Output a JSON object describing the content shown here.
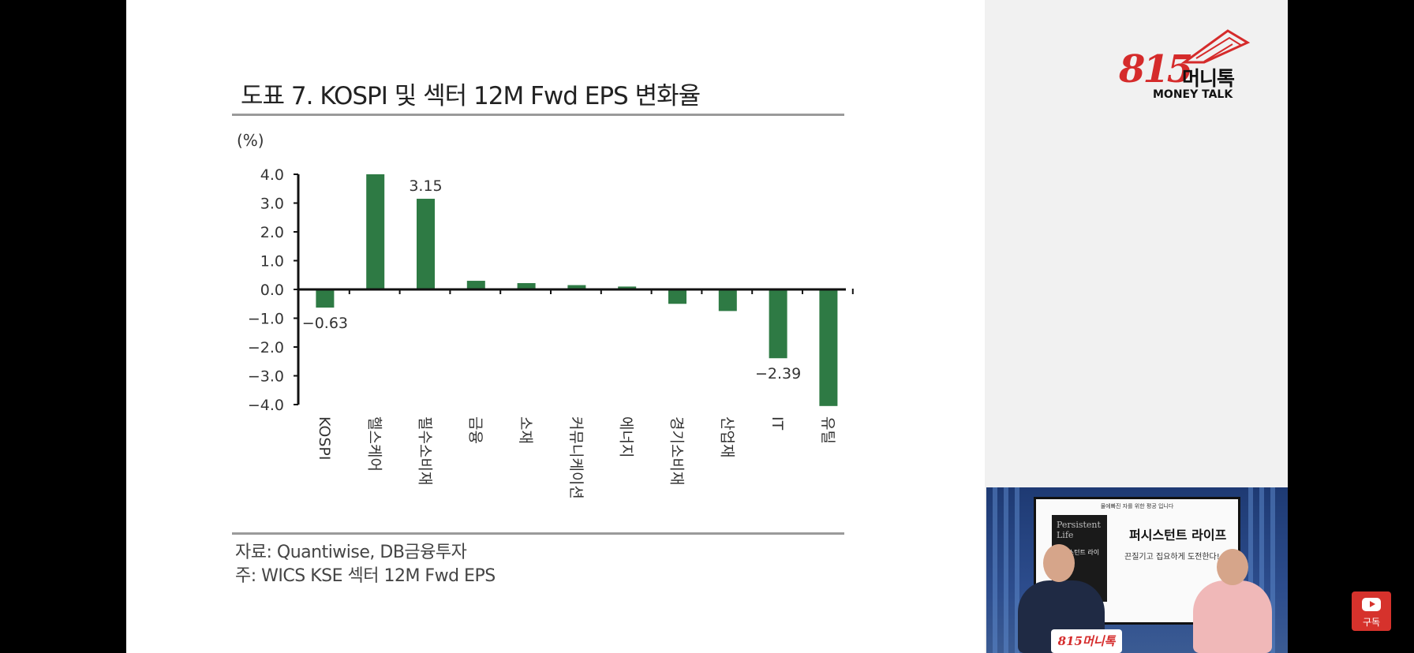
{
  "slide": {
    "title": "도표 7. KOSPI 및 섹터 12M Fwd EPS 변화율",
    "source_note": "자료: Quantiwise, DB금융투자",
    "footnote": "주: WICS KSE 섹터 12M Fwd EPS"
  },
  "chart_data": {
    "type": "bar",
    "title": "도표 7. KOSPI 및 섹터 12M Fwd EPS 변화율",
    "unit_label": "(%)",
    "categories": [
      "KOSPI",
      "헬스케어",
      "필수소비재",
      "금융",
      "소재",
      "커뮤니케이션",
      "에너지",
      "경기소비재",
      "산업재",
      "IT",
      "유틸"
    ],
    "values": [
      -0.63,
      4.0,
      3.15,
      0.3,
      0.22,
      0.15,
      0.1,
      -0.5,
      -0.75,
      -2.39,
      -4.05
    ],
    "data_labels": [
      {
        "index": 0,
        "text": "−0.63"
      },
      {
        "index": 2,
        "text": "3.15"
      },
      {
        "index": 9,
        "text": "−2.39"
      }
    ],
    "y_ticks": [
      "4.0",
      "3.0",
      "2.0",
      "1.0",
      "0.0",
      "−1.0",
      "−2.0",
      "−3.0",
      "−4.0"
    ],
    "y_tick_values": [
      4,
      3,
      2,
      1,
      0,
      -1,
      -2,
      -3,
      -4
    ],
    "ylim": [
      -4,
      4
    ],
    "bar_color": "#2e7a44",
    "grid": false
  },
  "logo": {
    "number": "815",
    "word": "머니톡",
    "sub": "MONEY TALK",
    "color": "#d52b2b"
  },
  "webcam": {
    "tv_top": "물에빠진 자를 위한 평공 입니다",
    "book_title": "Persistent Life",
    "book_sub": "퍼시스턴트 라이프",
    "headline": "퍼시스턴트 라이프",
    "subline": "끈질기고 집요하게 도전한다!",
    "desk_logo": "815머니톡"
  },
  "subscribe": {
    "label": "구독",
    "color": "#d6322c"
  }
}
